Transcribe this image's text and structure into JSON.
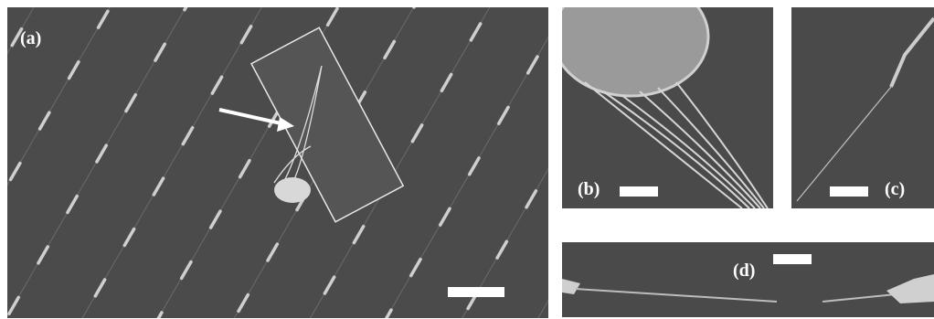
{
  "panels": {
    "a": {
      "label": "(a)"
    },
    "b": {
      "label": "(b)"
    },
    "c": {
      "label": "(c)"
    },
    "d": {
      "label": "(d)"
    }
  }
}
